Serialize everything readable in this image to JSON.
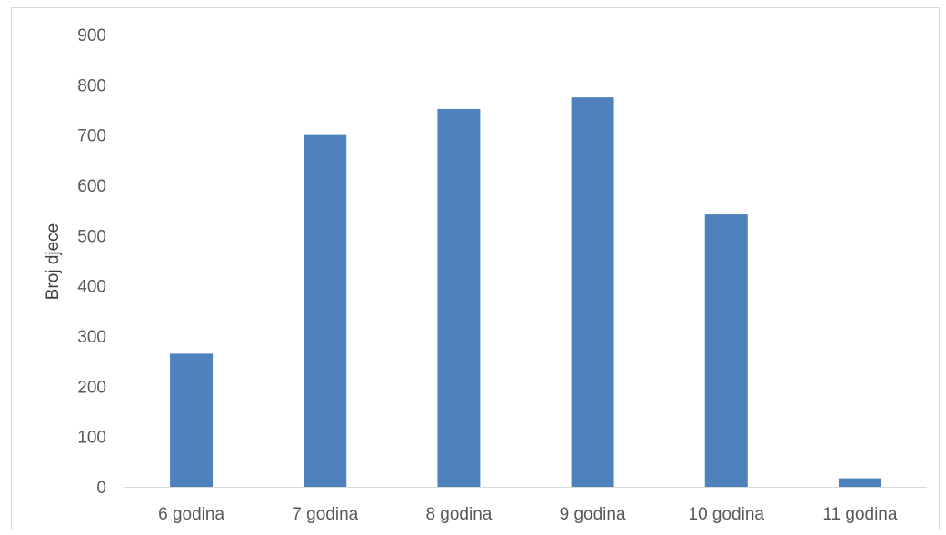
{
  "chart_data": {
    "type": "bar",
    "title": "",
    "xlabel": "",
    "ylabel": "Broj djece",
    "categories": [
      "6 godina",
      "7 godina",
      "8 godina",
      "9 godina",
      "10 godina",
      "11 godina"
    ],
    "series": [
      {
        "values": [
          265,
          700,
          752,
          775,
          542,
          17
        ],
        "color": "#4f81bd"
      }
    ],
    "ylim": [
      0,
      900
    ],
    "yticks": [
      0,
      100,
      200,
      300,
      400,
      500,
      600,
      700,
      800,
      900
    ],
    "grid": false,
    "legend": "none"
  }
}
